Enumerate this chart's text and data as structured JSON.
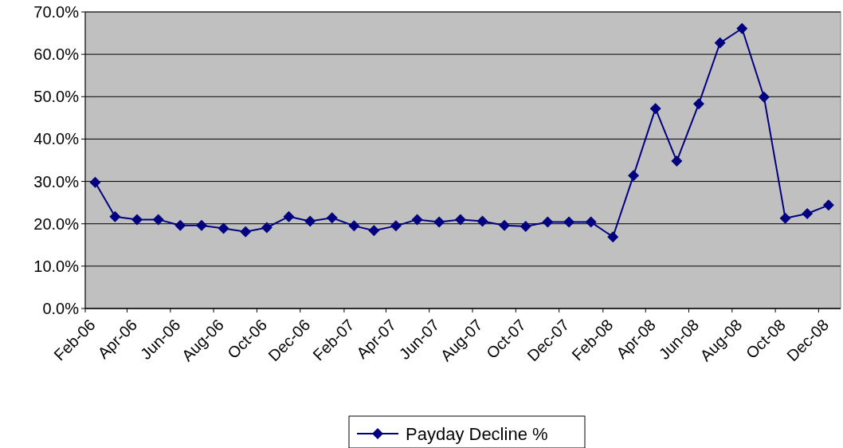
{
  "chart_data": {
    "type": "line",
    "marker": "diamond",
    "grid": "y",
    "legend": "bottom",
    "x": [
      "2006-02-15",
      "2006-03-15",
      "2006-04-15",
      "2006-05-15",
      "2006-06-15",
      "2006-07-15",
      "2006-08-15",
      "2006-09-15",
      "2006-10-15",
      "2006-11-15",
      "2006-12-15",
      "2007-01-15",
      "2007-02-15",
      "2007-03-15",
      "2007-04-15",
      "2007-05-15",
      "2007-06-15",
      "2007-07-15",
      "2007-08-15",
      "2007-09-15",
      "2007-10-15",
      "2007-11-15",
      "2007-12-15",
      "2008-01-15",
      "2008-02-15",
      "2008-03-15",
      "2008-04-15",
      "2008-05-15",
      "2008-06-15",
      "2008-07-15",
      "2008-08-15",
      "2008-09-15",
      "2008-10-15",
      "2008-11-15",
      "2008-12-15"
    ],
    "xlim": [
      "2006-02-01",
      "2009-01-01"
    ],
    "xticks": [
      {
        "value": "2006-02-01",
        "label": "Feb-06"
      },
      {
        "value": "2006-04-01",
        "label": "Apr-06"
      },
      {
        "value": "2006-06-01",
        "label": "Jun-06"
      },
      {
        "value": "2006-08-01",
        "label": "Aug-06"
      },
      {
        "value": "2006-10-01",
        "label": "Oct-06"
      },
      {
        "value": "2006-12-01",
        "label": "Dec-06"
      },
      {
        "value": "2007-02-01",
        "label": "Feb-07"
      },
      {
        "value": "2007-04-01",
        "label": "Apr-07"
      },
      {
        "value": "2007-06-01",
        "label": "Jun-07"
      },
      {
        "value": "2007-08-01",
        "label": "Aug-07"
      },
      {
        "value": "2007-10-01",
        "label": "Oct-07"
      },
      {
        "value": "2007-12-01",
        "label": "Dec-07"
      },
      {
        "value": "2008-02-01",
        "label": "Feb-08"
      },
      {
        "value": "2008-04-01",
        "label": "Apr-08"
      },
      {
        "value": "2008-06-01",
        "label": "Jun-08"
      },
      {
        "value": "2008-08-01",
        "label": "Aug-08"
      },
      {
        "value": "2008-10-01",
        "label": "Oct-08"
      },
      {
        "value": "2008-12-01",
        "label": "Dec-08"
      }
    ],
    "ylim": [
      0,
      70
    ],
    "yticks": [
      {
        "value": 0,
        "label": "0.0%"
      },
      {
        "value": 10,
        "label": "10.0%"
      },
      {
        "value": 20,
        "label": "20.0%"
      },
      {
        "value": 30,
        "label": "30.0%"
      },
      {
        "value": 40,
        "label": "40.0%"
      },
      {
        "value": 50,
        "label": "50.0%"
      },
      {
        "value": 60,
        "label": "60.0%"
      },
      {
        "value": 70,
        "label": "70.0%"
      }
    ],
    "series": [
      {
        "name": "Payday Decline %",
        "color": "#000080",
        "values": [
          29.8,
          21.7,
          21.0,
          21.0,
          19.6,
          19.6,
          18.9,
          18.1,
          19.1,
          21.7,
          20.6,
          21.4,
          19.5,
          18.4,
          19.5,
          21.0,
          20.4,
          21.0,
          20.6,
          19.6,
          19.4,
          20.4,
          20.4,
          20.4,
          16.9,
          31.4,
          47.2,
          34.8,
          48.3,
          62.7,
          66.1,
          49.9,
          21.3,
          22.4,
          24.4
        ]
      }
    ]
  }
}
